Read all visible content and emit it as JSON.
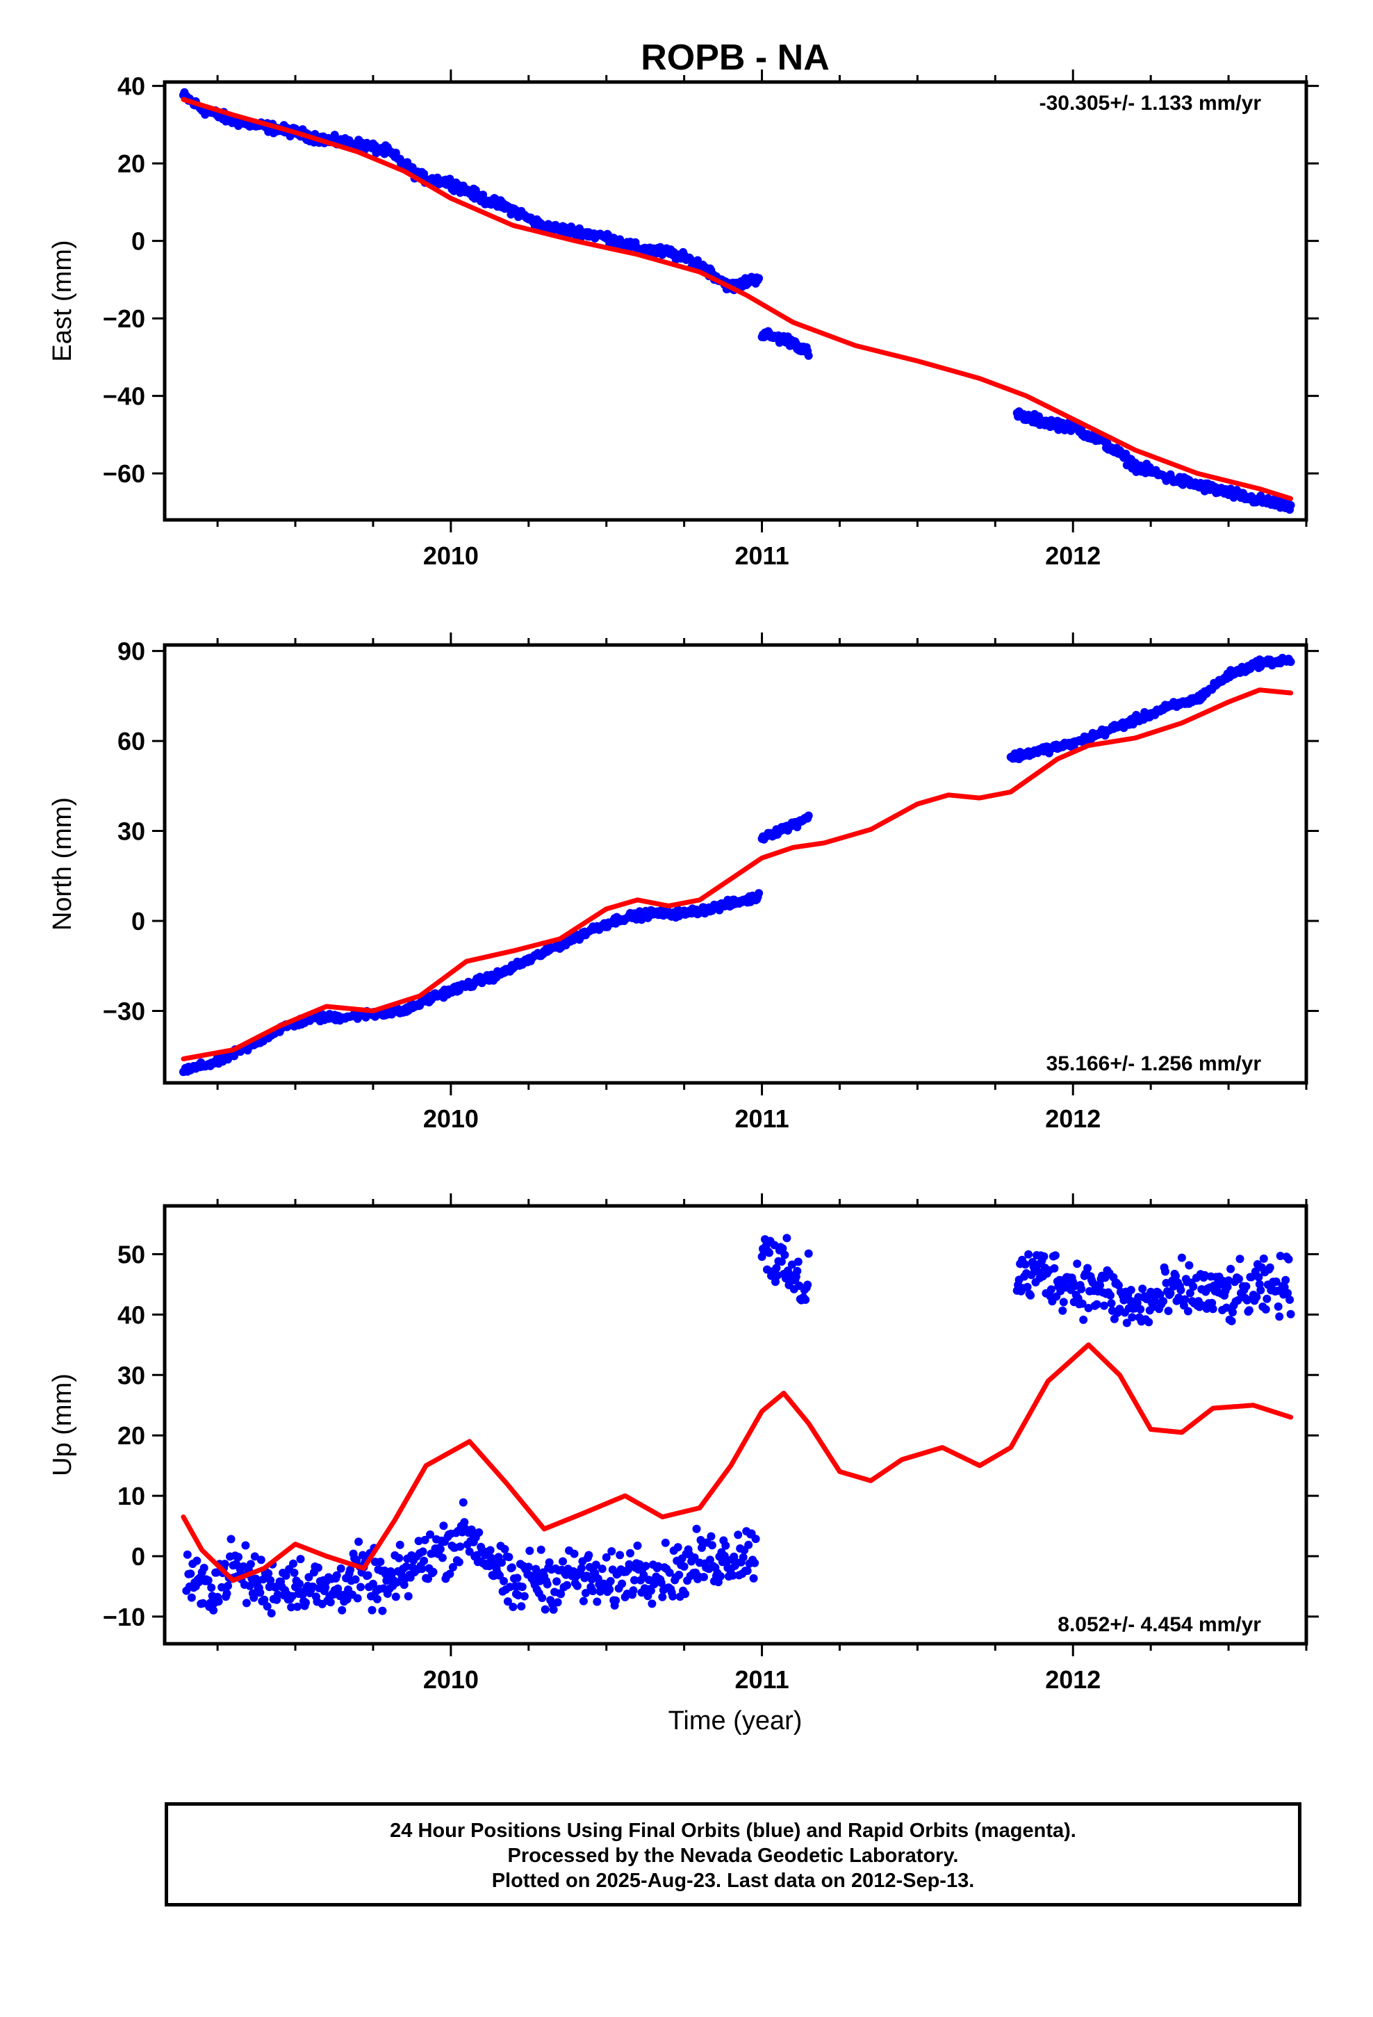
{
  "title": "ROPB - NA",
  "footer": {
    "line1": "24 Hour Positions Using Final Orbits (blue) and Rapid Orbits (magenta).",
    "line2": "Processed by the Nevada Geodetic Laboratory.",
    "line3": "Plotted on 2025-Aug-23. Last data on 2012-Sep-13."
  },
  "colors": {
    "data": "#0000ff",
    "fit": "#ff0000",
    "axis": "#000000"
  },
  "chart_data": [
    {
      "type": "scatter",
      "ylabel": "East (mm)",
      "xlabel": "",
      "rate_label": "-30.305+/- 1.133 mm/yr",
      "rate_position": "top-right",
      "xlim": [
        2009.08,
        2012.75
      ],
      "ylim": [
        -72,
        41
      ],
      "xticks": [
        2010,
        2011,
        2012
      ],
      "xtick_labels": [
        "2010",
        "2011",
        "2012"
      ],
      "yticks": [
        40,
        20,
        0,
        -20,
        -40,
        -60
      ],
      "ytick_labels": [
        "40",
        "20",
        "0",
        "−20",
        "−40",
        "−60"
      ],
      "data_segments": [
        {
          "x": [
            2009.14,
            2009.2,
            2009.3,
            2009.4,
            2009.5,
            2009.6,
            2009.7,
            2009.8,
            2009.9,
            2010.0,
            2010.1,
            2010.2,
            2010.3,
            2010.4,
            2010.5,
            2010.6,
            2010.7,
            2010.8,
            2010.9,
            2010.99
          ],
          "y": [
            37.5,
            34,
            31,
            29.5,
            28,
            26,
            25,
            23,
            16.5,
            15,
            11,
            8,
            3.5,
            2.5,
            1,
            -2,
            -3,
            -6,
            -12,
            -9.5
          ]
        },
        {
          "x": [
            2011.0,
            2011.05,
            2011.1,
            2011.15
          ],
          "y": [
            -24,
            -25,
            -26,
            -29
          ]
        },
        {
          "x": [
            2011.82,
            2011.9,
            2012.0,
            2012.1,
            2012.2,
            2012.3,
            2012.4,
            2012.5,
            2012.6,
            2012.7
          ],
          "y": [
            -45,
            -46.5,
            -48,
            -52,
            -58,
            -61,
            -63,
            -65,
            -67,
            -68.5
          ]
        }
      ],
      "fit": {
        "x": [
          2009.14,
          2009.3,
          2009.5,
          2009.7,
          2009.85,
          2010.0,
          2010.2,
          2010.4,
          2010.6,
          2010.8,
          2010.95,
          2011.1,
          2011.3,
          2011.5,
          2011.7,
          2011.85,
          2012.0,
          2012.2,
          2012.4,
          2012.6,
          2012.7
        ],
        "y": [
          36.5,
          32.5,
          28,
          23,
          18,
          11,
          4,
          0,
          -3.5,
          -8,
          -14,
          -21,
          -27,
          -31,
          -35.5,
          -40,
          -46,
          -54,
          -60,
          -64,
          -66.5
        ]
      }
    },
    {
      "type": "scatter",
      "ylabel": "North (mm)",
      "xlabel": "",
      "rate_label": "35.166+/- 1.256 mm/yr",
      "rate_position": "bottom-right",
      "xlim": [
        2009.08,
        2012.75
      ],
      "ylim": [
        -54,
        92
      ],
      "xticks": [
        2010,
        2011,
        2012
      ],
      "xtick_labels": [
        "2010",
        "2011",
        "2012"
      ],
      "yticks": [
        90,
        60,
        30,
        0,
        -30
      ],
      "ytick_labels": [
        "90",
        "60",
        "30",
        "0",
        "−30"
      ],
      "data_segments": [
        {
          "x": [
            2009.14,
            2009.25,
            2009.35,
            2009.45,
            2009.55,
            2009.65,
            2009.75,
            2009.85,
            2009.95,
            2010.05,
            2010.15,
            2010.25,
            2010.35,
            2010.45,
            2010.55,
            2010.65,
            2010.75,
            2010.85,
            2010.95,
            2010.99
          ],
          "y": [
            -50,
            -47,
            -42,
            -36,
            -32.5,
            -32,
            -31,
            -30,
            -25,
            -21.5,
            -18,
            -13,
            -8,
            -3,
            1,
            2.5,
            2.5,
            4.5,
            7,
            8
          ]
        },
        {
          "x": [
            2011.0,
            2011.05,
            2011.1,
            2011.15
          ],
          "y": [
            28,
            30,
            32,
            35
          ]
        },
        {
          "x": [
            2011.8,
            2011.9,
            2012.0,
            2012.1,
            2012.2,
            2012.3,
            2012.4,
            2012.5,
            2012.6,
            2012.7
          ],
          "y": [
            54.5,
            57,
            59,
            63,
            67,
            71,
            74,
            82,
            86,
            87
          ]
        }
      ],
      "fit": {
        "x": [
          2009.14,
          2009.3,
          2009.45,
          2009.6,
          2009.75,
          2009.9,
          2010.05,
          2010.2,
          2010.35,
          2010.5,
          2010.6,
          2010.7,
          2010.8,
          2010.9,
          2011.0,
          2011.1,
          2011.2,
          2011.35,
          2011.5,
          2011.6,
          2011.7,
          2011.8,
          2011.95,
          2012.05,
          2012.2,
          2012.35,
          2012.5,
          2012.6,
          2012.7
        ],
        "y": [
          -46,
          -43,
          -35,
          -28.5,
          -30,
          -25,
          -13.5,
          -10,
          -6,
          4,
          7,
          5,
          7,
          14,
          21,
          24.5,
          26,
          30.5,
          39,
          42,
          41,
          43,
          54,
          58.5,
          61,
          66,
          73,
          77,
          76
        ]
      }
    },
    {
      "type": "scatter",
      "ylabel": "Up (mm)",
      "xlabel": "Time (year)",
      "rate_label": "8.052+/- 4.454 mm/yr",
      "rate_position": "bottom-right",
      "xlim": [
        2009.08,
        2012.75
      ],
      "ylim": [
        -14.5,
        58
      ],
      "xticks": [
        2010,
        2011,
        2012
      ],
      "xtick_labels": [
        "2010",
        "2011",
        "2012"
      ],
      "yticks": [
        50,
        40,
        30,
        20,
        10,
        0,
        -10
      ],
      "ytick_labels": [
        "50",
        "40",
        "30",
        "20",
        "10",
        "0",
        "−10"
      ],
      "data_segments": [
        {
          "x": [
            2009.15,
            2009.2,
            2009.3,
            2009.4,
            2009.5,
            2009.6,
            2009.7,
            2009.8,
            2009.9,
            2010.0,
            2010.05,
            2010.1,
            2010.15,
            2010.2,
            2010.25,
            2010.3,
            2010.4,
            2010.5,
            2010.6,
            2010.7,
            2010.8,
            2010.9,
            2010.98
          ],
          "y": [
            -3,
            -6,
            -2,
            -5,
            -4,
            -6,
            -3,
            -5,
            -1,
            2,
            4,
            1,
            -2,
            -6,
            -3,
            -4,
            -3,
            -5,
            -2,
            -3,
            -1,
            0,
            1
          ]
        },
        {
          "x": [
            2011.0,
            2011.03,
            2011.06,
            2011.1,
            2011.13,
            2011.15
          ],
          "y": [
            52,
            50,
            48,
            46,
            44,
            47
          ]
        },
        {
          "x": [
            2011.82,
            2011.9,
            2012.0,
            2012.1,
            2012.2,
            2012.3,
            2012.35,
            2012.5,
            2012.6,
            2012.7
          ],
          "y": [
            46,
            47,
            45,
            44,
            41,
            43,
            44,
            43,
            44,
            45
          ]
        }
      ],
      "fit": {
        "x": [
          2009.14,
          2009.2,
          2009.3,
          2009.4,
          2009.5,
          2009.6,
          2009.72,
          2009.82,
          2009.92,
          2010.06,
          2010.18,
          2010.3,
          2010.42,
          2010.56,
          2010.68,
          2010.8,
          2010.9,
          2011.0,
          2011.07,
          2011.15,
          2011.25,
          2011.35,
          2011.45,
          2011.58,
          2011.7,
          2011.8,
          2011.92,
          2012.05,
          2012.15,
          2012.25,
          2012.35,
          2012.45,
          2012.58,
          2012.7
        ],
        "y": [
          6.5,
          1,
          -4,
          -2,
          2,
          0,
          -2,
          6,
          15,
          19,
          12,
          4.5,
          7,
          10,
          6.5,
          8,
          15,
          24,
          27,
          22,
          14,
          12.5,
          16,
          18,
          15,
          18,
          29,
          35,
          30,
          21,
          20.5,
          24.5,
          25,
          23
        ]
      }
    }
  ]
}
